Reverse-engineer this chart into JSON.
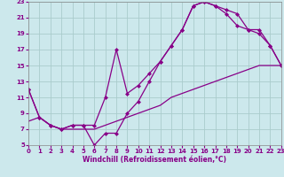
{
  "xlabel": "Windchill (Refroidissement éolien,°C)",
  "bg_color": "#cce8ec",
  "line_color": "#880088",
  "grid_color": "#aacccc",
  "xlim": [
    0,
    23
  ],
  "ylim": [
    5,
    23
  ],
  "xticks": [
    0,
    1,
    2,
    3,
    4,
    5,
    6,
    7,
    8,
    9,
    10,
    11,
    12,
    13,
    14,
    15,
    16,
    17,
    18,
    19,
    20,
    21,
    22,
    23
  ],
  "yticks": [
    5,
    7,
    9,
    11,
    13,
    15,
    17,
    19,
    21,
    23
  ],
  "curve1_x": [
    0,
    1,
    2,
    3,
    4,
    5,
    6,
    7,
    8,
    9,
    10,
    11,
    12,
    13,
    14,
    15,
    16,
    17,
    18,
    19,
    20,
    21,
    22,
    23
  ],
  "curve1_y": [
    12,
    8.5,
    7.5,
    7,
    7.5,
    7.5,
    7.5,
    11,
    17,
    11.5,
    12.5,
    14,
    15.5,
    17.5,
    19.5,
    22.5,
    23,
    22.5,
    22,
    21.5,
    19.5,
    19,
    17.5,
    15
  ],
  "curve2_x": [
    0,
    1,
    2,
    3,
    4,
    5,
    6,
    7,
    8,
    9,
    10,
    11,
    12,
    13,
    14,
    15,
    16,
    17,
    18,
    19,
    20,
    21,
    22,
    23
  ],
  "curve2_y": [
    12,
    8.5,
    7.5,
    7,
    7.5,
    7.5,
    5,
    6.5,
    6.5,
    9,
    10.5,
    13,
    15.5,
    17.5,
    19.5,
    22.5,
    23,
    22.5,
    21.5,
    20,
    19.5,
    19.5,
    17.5,
    15
  ],
  "curve3_x": [
    0,
    1,
    2,
    3,
    4,
    5,
    6,
    7,
    8,
    9,
    10,
    11,
    12,
    13,
    14,
    15,
    16,
    17,
    18,
    19,
    20,
    21,
    22,
    23
  ],
  "curve3_y": [
    8,
    8.5,
    7.5,
    7,
    7,
    7,
    7,
    7.5,
    8,
    8.5,
    9,
    9.5,
    10,
    11,
    11.5,
    12,
    12.5,
    13,
    13.5,
    14,
    14.5,
    15,
    15,
    15
  ]
}
